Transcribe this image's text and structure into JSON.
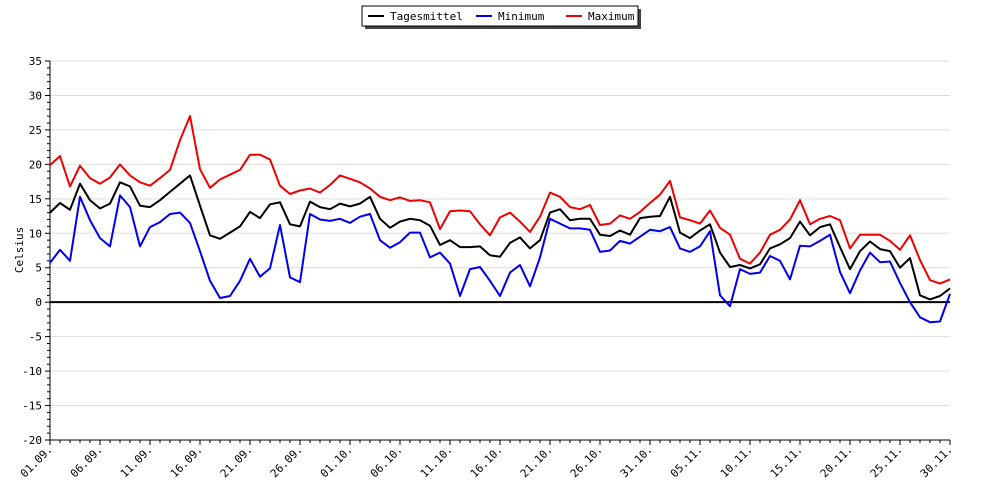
{
  "chart_data": {
    "type": "line",
    "title": "",
    "xlabel": "",
    "ylabel": "Celsius",
    "ylim": [
      -20,
      35
    ],
    "yticks": [
      35,
      30,
      25,
      20,
      15,
      10,
      5,
      0,
      -5,
      -10,
      -15,
      -20
    ],
    "x_tick_labels": [
      "01.09.",
      "06.09.",
      "11.09.",
      "16.09.",
      "21.09.",
      "26.09.",
      "01.10.",
      "06.10.",
      "11.10.",
      "16.10.",
      "21.10.",
      "26.10.",
      "31.10.",
      "05.11.",
      "10.11.",
      "15.11.",
      "20.11.",
      "25.11.",
      "30.11."
    ],
    "x_range_days": [
      0,
      90
    ],
    "grid": "horizontal",
    "zero_line": true,
    "legend": {
      "position": "top-center"
    },
    "series": [
      {
        "name": "Tagesmittel",
        "color": "#000000",
        "values": [
          13.0,
          14.4,
          13.4,
          17.2,
          14.8,
          13.6,
          14.3,
          17.4,
          16.8,
          14.0,
          13.8,
          14.8,
          16.0,
          17.2,
          18.4,
          14.0,
          9.7,
          9.2,
          10.1,
          11.0,
          13.1,
          12.2,
          14.2,
          14.5,
          11.3,
          11.0,
          14.6,
          13.8,
          13.5,
          14.3,
          13.9,
          14.3,
          15.3,
          12.1,
          10.8,
          11.7,
          12.1,
          11.9,
          11.1,
          8.3,
          9.0,
          8.0,
          8.0,
          8.1,
          6.8,
          6.6,
          8.6,
          9.4,
          7.8,
          9.0,
          13.0,
          13.5,
          11.9,
          12.1,
          12.1,
          9.8,
          9.6,
          10.4,
          9.8,
          12.2,
          12.4,
          12.5,
          15.3,
          10.1,
          9.3,
          10.4,
          11.3,
          7.2,
          5.1,
          5.4,
          4.9,
          5.5,
          7.8,
          8.4,
          9.3,
          11.7,
          9.7,
          10.9,
          11.3,
          8.0,
          4.8,
          7.4,
          8.8,
          7.7,
          7.4,
          5.0,
          6.4,
          1.0,
          0.4,
          0.9,
          2.0
        ]
      },
      {
        "name": "Minimum",
        "color": "#0000ee",
        "values": [
          5.7,
          7.6,
          6.0,
          15.3,
          11.9,
          9.3,
          8.1,
          15.5,
          13.8,
          8.1,
          10.9,
          11.6,
          12.8,
          13.0,
          11.5,
          7.4,
          3.1,
          0.6,
          0.9,
          3.1,
          6.3,
          3.7,
          4.9,
          11.2,
          3.6,
          2.9,
          12.8,
          12.0,
          11.8,
          12.1,
          11.5,
          12.4,
          12.8,
          9.0,
          7.9,
          8.7,
          10.1,
          10.1,
          6.5,
          7.2,
          5.6,
          0.9,
          4.8,
          5.1,
          3.1,
          0.9,
          4.3,
          5.4,
          2.3,
          6.5,
          12.1,
          11.4,
          10.7,
          10.7,
          10.5,
          7.3,
          7.5,
          8.9,
          8.5,
          9.5,
          10.5,
          10.3,
          10.9,
          7.8,
          7.3,
          8.1,
          10.3,
          1.0,
          -0.6,
          4.8,
          4.1,
          4.3,
          6.7,
          6.0,
          3.3,
          8.2,
          8.1,
          8.9,
          9.8,
          4.4,
          1.3,
          4.6,
          7.2,
          5.8,
          5.9,
          2.8,
          0.0,
          -2.2,
          -2.9,
          -2.8,
          1.2
        ]
      },
      {
        "name": "Maximum",
        "color": "#ee0000",
        "values": [
          19.9,
          21.2,
          16.8,
          19.8,
          18.0,
          17.2,
          18.1,
          20.0,
          18.4,
          17.4,
          16.9,
          18.0,
          19.2,
          23.5,
          27.0,
          19.3,
          16.6,
          17.8,
          18.5,
          19.2,
          21.4,
          21.4,
          20.7,
          16.9,
          15.7,
          16.2,
          16.5,
          15.9,
          17.0,
          18.4,
          17.9,
          17.4,
          16.5,
          15.3,
          14.8,
          15.2,
          14.7,
          14.8,
          14.5,
          10.6,
          13.2,
          13.3,
          13.2,
          11.3,
          9.7,
          12.3,
          13.0,
          11.7,
          10.2,
          12.4,
          15.9,
          15.3,
          13.8,
          13.5,
          14.1,
          11.2,
          11.4,
          12.6,
          12.1,
          13.1,
          14.4,
          15.6,
          17.6,
          12.3,
          11.9,
          11.4,
          13.3,
          10.8,
          9.8,
          6.3,
          5.6,
          7.2,
          9.8,
          10.5,
          12.0,
          14.8,
          11.3,
          12.1,
          12.5,
          11.9,
          7.8,
          9.8,
          9.8,
          9.8,
          8.9,
          7.6,
          9.7,
          6.1,
          3.2,
          2.7,
          3.3
        ]
      }
    ]
  }
}
